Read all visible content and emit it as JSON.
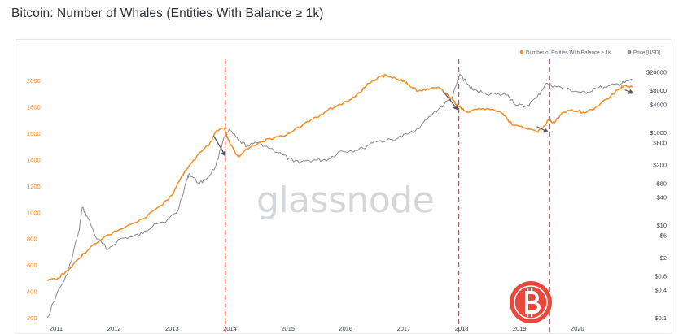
{
  "title": "Bitcoin: Number of Whales (Entities With Balance ≥ 1k)",
  "watermark": "glassnode",
  "colors": {
    "whales": "#f0922e",
    "price": "#8a8a8a",
    "vline": "#e8453c",
    "arrow": "#555a60",
    "logo": "#e9493c"
  },
  "logo_icon": "bitcoin-logo-icon",
  "chart_data": {
    "type": "line",
    "title": "Bitcoin: Number of Whales (Entities With Balance ≥ 1k)",
    "x_ticks": [
      "2011",
      "2012",
      "2013",
      "2014",
      "2015",
      "2016",
      "2017",
      "2018",
      "2019",
      "2020"
    ],
    "x_range": [
      2011.0,
      2020.95
    ],
    "y_left": {
      "ticks": [
        "200",
        "400",
        "600",
        "800",
        "1000",
        "1200",
        "1400",
        "1600",
        "1800",
        "2000"
      ],
      "range": [
        200,
        2100
      ]
    },
    "y_right": {
      "scale": "log",
      "ticks": [
        "$0.1",
        "$0.4",
        "$0.8",
        "$2",
        "$6",
        "$10",
        "$40",
        "$80",
        "$200",
        "$600",
        "$1000",
        "$4000",
        "$8000",
        "$20000"
      ],
      "tick_values": [
        0.1,
        0.4,
        0.8,
        2,
        6,
        10,
        40,
        80,
        200,
        600,
        1000,
        4000,
        8000,
        20000
      ],
      "range": [
        0.1,
        25000
      ]
    },
    "legend": [
      "Number of Entities With Balance ≥ 1k",
      "Price [USD]"
    ],
    "legend_position": "top-right",
    "vlines": [
      2013.92,
      2017.95,
      2019.52
    ],
    "series": [
      {
        "name": "Number of Entities With Balance ≥ 1k",
        "axis": "left",
        "x": [
          2010.85,
          2011.0,
          2011.2,
          2011.4,
          2011.6,
          2011.9,
          2012.2,
          2012.5,
          2012.8,
          2013.0,
          2013.15,
          2013.3,
          2013.5,
          2013.65,
          2013.75,
          2013.9,
          2014.0,
          2014.15,
          2014.3,
          2014.5,
          2014.7,
          2014.9,
          2015.1,
          2015.3,
          2015.5,
          2015.7,
          2015.9,
          2016.1,
          2016.25,
          2016.4,
          2016.55,
          2016.7,
          2016.9,
          2017.0,
          2017.1,
          2017.25,
          2017.4,
          2017.6,
          2017.8,
          2017.95,
          2018.1,
          2018.3,
          2018.5,
          2018.7,
          2018.8,
          2018.9,
          2019.1,
          2019.3,
          2019.4,
          2019.5,
          2019.6,
          2019.75,
          2019.9,
          2020.1,
          2020.3,
          2020.5,
          2020.7,
          2020.8,
          2020.95
        ],
        "values": [
          480,
          490,
          560,
          650,
          740,
          830,
          890,
          950,
          1050,
          1130,
          1260,
          1360,
          1460,
          1520,
          1610,
          1640,
          1520,
          1420,
          1480,
          1530,
          1560,
          1580,
          1620,
          1680,
          1720,
          1780,
          1820,
          1860,
          1910,
          1980,
          2020,
          2040,
          2010,
          2000,
          1960,
          1920,
          1940,
          1950,
          1870,
          1800,
          1760,
          1790,
          1780,
          1750,
          1700,
          1660,
          1640,
          1610,
          1640,
          1700,
          1680,
          1760,
          1780,
          1760,
          1790,
          1860,
          1930,
          1960,
          1950
        ]
      },
      {
        "name": "Price [USD]",
        "axis": "right",
        "x": [
          2010.85,
          2011.0,
          2011.2,
          2011.4,
          2011.45,
          2011.55,
          2011.7,
          2011.9,
          2012.1,
          2012.3,
          2012.5,
          2012.7,
          2012.9,
          2013.1,
          2013.25,
          2013.3,
          2013.45,
          2013.6,
          2013.75,
          2013.9,
          2014.0,
          2014.15,
          2014.3,
          2014.5,
          2014.7,
          2014.9,
          2015.1,
          2015.3,
          2015.5,
          2015.7,
          2015.9,
          2016.1,
          2016.3,
          2016.5,
          2016.7,
          2016.9,
          2017.1,
          2017.3,
          2017.5,
          2017.7,
          2017.85,
          2017.97,
          2018.1,
          2018.2,
          2018.4,
          2018.6,
          2018.8,
          2018.95,
          2019.1,
          2019.3,
          2019.45,
          2019.6,
          2019.8,
          2020.0,
          2020.15,
          2020.3,
          2020.5,
          2020.7,
          2020.8,
          2020.95
        ],
        "values": [
          0.1,
          0.3,
          0.9,
          8,
          24,
          14,
          5,
          3,
          5,
          5.5,
          6.5,
          11,
          12,
          20,
          90,
          130,
          80,
          100,
          180,
          800,
          1100,
          650,
          500,
          600,
          450,
          330,
          230,
          240,
          250,
          260,
          390,
          400,
          450,
          650,
          650,
          740,
          950,
          1400,
          2500,
          4000,
          6000,
          18000,
          11000,
          8000,
          7000,
          6500,
          6400,
          3800,
          3600,
          5500,
          11000,
          10000,
          8500,
          7500,
          6800,
          9000,
          9200,
          11000,
          11500,
          13500
        ]
      }
    ],
    "arrows": [
      "2013.75 → 2013.92",
      "2017.7 → 2017.95",
      "2019.3 → 2019.5",
      "2020.82 → 2020.95"
    ]
  }
}
